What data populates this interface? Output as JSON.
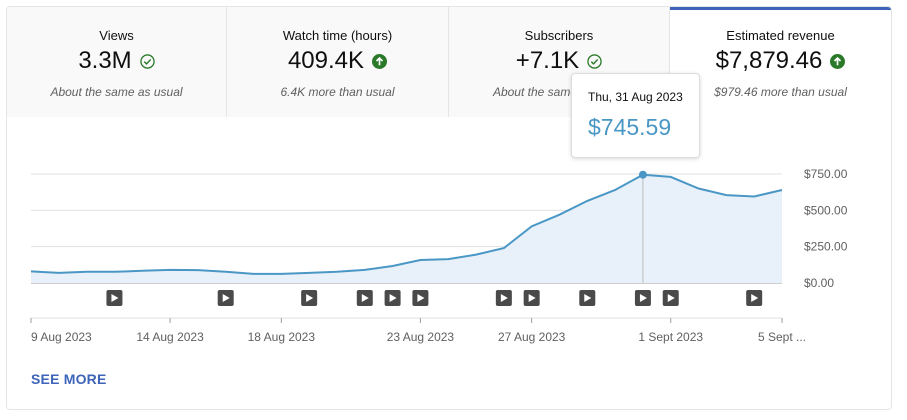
{
  "metrics": [
    {
      "label": "Views",
      "value": "3.3M",
      "icon": "check-circle-icon",
      "note": "About the same as usual"
    },
    {
      "label": "Watch time (hours)",
      "value": "409.4K",
      "icon": "arrow-up-icon",
      "note": "6.4K more than usual"
    },
    {
      "label": "Subscribers",
      "value": "+7.1K",
      "icon": "check-circle-icon",
      "note": "About the same as usual"
    },
    {
      "label": "Estimated revenue",
      "value": "$7,879.46",
      "icon": "arrow-up-icon",
      "note": "$979.46 more than usual"
    }
  ],
  "tooltip": {
    "date": "Thu, 31 Aug 2023",
    "value": "$745.59"
  },
  "see_more": "SEE MORE",
  "colors": {
    "accent": "#3e64b9",
    "line": "#4a97c6",
    "fill": "#e8f1f9",
    "up_green": "#2a7a2a"
  },
  "chart_data": {
    "type": "area",
    "title": "Estimated revenue",
    "ylim": [
      0,
      750
    ],
    "yticks": [
      0,
      250,
      500,
      750
    ],
    "ytick_labels": [
      "$0.00",
      "$250.00",
      "$500.00",
      "$750.00"
    ],
    "x_start_day": 9,
    "x_end_day": 36,
    "xtick_days": [
      9,
      14,
      18,
      23,
      27,
      32,
      36
    ],
    "xtick_labels": [
      "9 Aug 2023",
      "14 Aug 2023",
      "18 Aug 2023",
      "23 Aug 2023",
      "27 Aug 2023",
      "1 Sept 2023",
      "5 Sept ..."
    ],
    "x_days": [
      9,
      10,
      11,
      12,
      13,
      14,
      15,
      16,
      17,
      18,
      19,
      20,
      21,
      22,
      23,
      24,
      25,
      26,
      27,
      28,
      29,
      30,
      31,
      32,
      33,
      34,
      35,
      36
    ],
    "values": [
      80,
      70,
      77,
      77,
      84,
      90,
      89,
      77,
      63,
      63,
      70,
      77,
      90,
      117,
      158,
      164,
      195,
      240,
      390,
      470,
      565,
      640,
      745,
      730,
      650,
      605,
      595,
      640
    ],
    "highlight_index": 22,
    "video_markers_days": [
      12,
      16,
      19,
      21,
      22,
      23,
      26,
      27,
      29,
      31,
      32,
      35
    ]
  }
}
